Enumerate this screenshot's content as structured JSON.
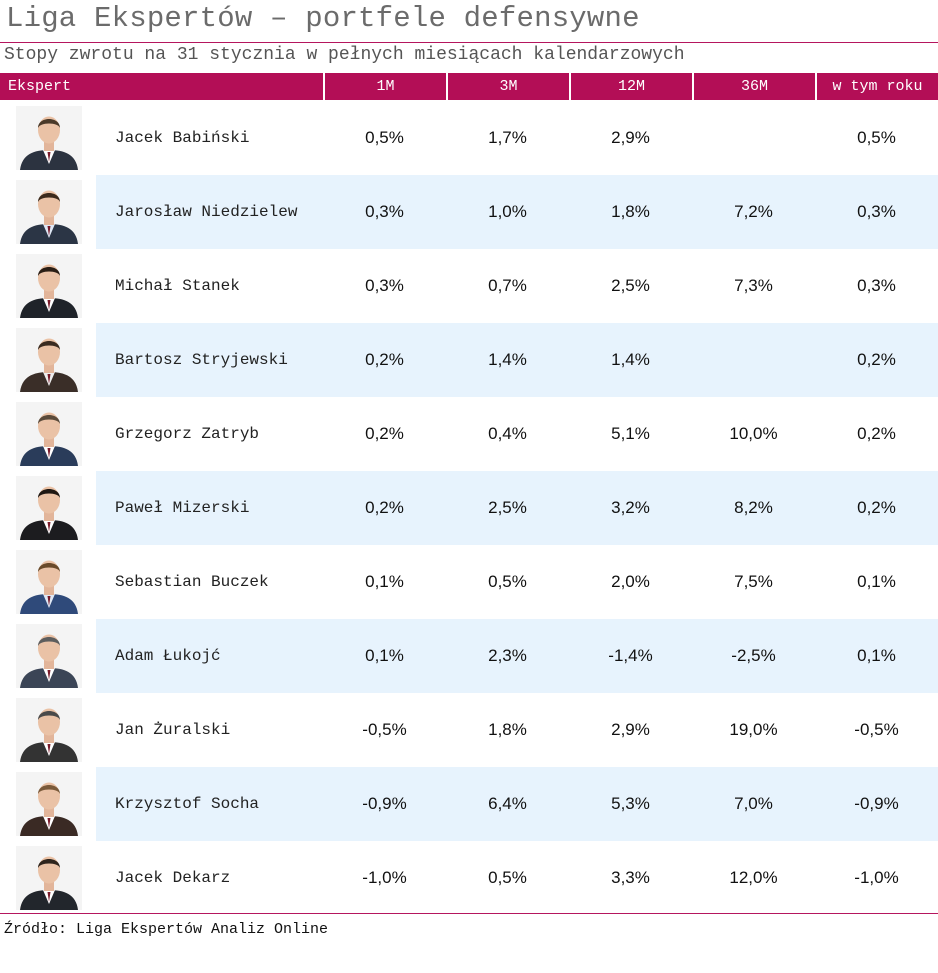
{
  "title": "Liga Ekspertów – portfele defensywne",
  "subtitle": "Stopy zwrotu na 31 stycznia w pełnych miesiącach kalendarzowych",
  "colors": {
    "accent": "#b30e56",
    "row_alt": "#e7f3fd"
  },
  "header": {
    "expert": "Ekspert",
    "m1": "1M",
    "m3": "3M",
    "m12": "12M",
    "m36": "36M",
    "ytd": "w tym roku"
  },
  "rows": [
    {
      "name": "Jacek Babiński",
      "m1": "0,5%",
      "m3": "1,7%",
      "m12": "2,9%",
      "m36": "",
      "ytd": "0,5%",
      "photo_icon": "person-photo-icon"
    },
    {
      "name": "Jarosław Niedzielew",
      "m1": "0,3%",
      "m3": "1,0%",
      "m12": "1,8%",
      "m36": "7,2%",
      "ytd": "0,3%",
      "photo_icon": "person-photo-icon"
    },
    {
      "name": "Michał Stanek",
      "m1": "0,3%",
      "m3": "0,7%",
      "m12": "2,5%",
      "m36": "7,3%",
      "ytd": "0,3%",
      "photo_icon": "person-photo-icon"
    },
    {
      "name": "Bartosz Stryjewski",
      "m1": "0,2%",
      "m3": "1,4%",
      "m12": "1,4%",
      "m36": "",
      "ytd": "0,2%",
      "photo_icon": "person-photo-icon"
    },
    {
      "name": "Grzegorz Zatryb",
      "m1": "0,2%",
      "m3": "0,4%",
      "m12": "5,1%",
      "m36": "10,0%",
      "ytd": "0,2%",
      "photo_icon": "person-photo-icon"
    },
    {
      "name": "Paweł Mizerski",
      "m1": "0,2%",
      "m3": "2,5%",
      "m12": "3,2%",
      "m36": "8,2%",
      "ytd": "0,2%",
      "photo_icon": "person-photo-icon"
    },
    {
      "name": "Sebastian Buczek",
      "m1": "0,1%",
      "m3": "0,5%",
      "m12": "2,0%",
      "m36": "7,5%",
      "ytd": "0,1%",
      "photo_icon": "person-photo-icon"
    },
    {
      "name": "Adam Łukojć",
      "m1": "0,1%",
      "m3": "2,3%",
      "m12": "-1,4%",
      "m36": "-2,5%",
      "ytd": "0,1%",
      "photo_icon": "person-photo-icon"
    },
    {
      "name": "Jan Żuralski",
      "m1": "-0,5%",
      "m3": "1,8%",
      "m12": "2,9%",
      "m36": "19,0%",
      "ytd": "-0,5%",
      "photo_icon": "person-photo-icon"
    },
    {
      "name": "Krzysztof Socha",
      "m1": "-0,9%",
      "m3": "6,4%",
      "m12": "5,3%",
      "m36": "7,0%",
      "ytd": "-0,9%",
      "photo_icon": "person-photo-icon"
    },
    {
      "name": "Jacek Dekarz",
      "m1": "-1,0%",
      "m3": "0,5%",
      "m12": "3,3%",
      "m36": "12,0%",
      "ytd": "-1,0%",
      "photo_icon": "person-photo-icon"
    }
  ],
  "source": "Źródło: Liga Ekspertów Analiz Online"
}
